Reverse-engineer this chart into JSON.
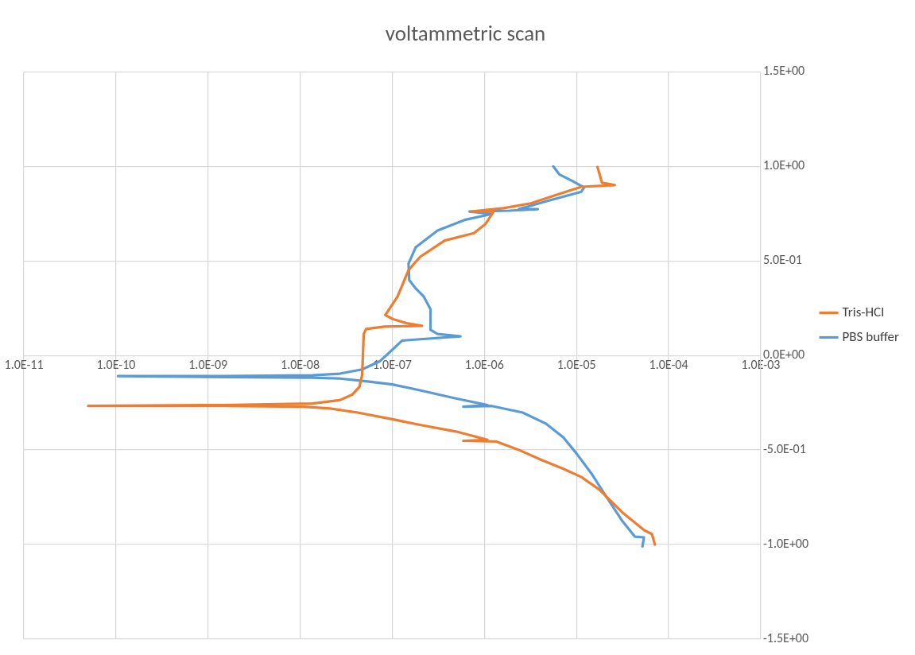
{
  "chart_data": {
    "type": "line",
    "title": "voltammetric scan",
    "log": "x",
    "grid": true,
    "legend": "right",
    "marker": "none",
    "line_style": "solid",
    "xlim": [
      1e-11,
      0.001
    ],
    "xticks": [
      {
        "value": 1e-11,
        "label": "1.0E-11"
      },
      {
        "value": 1e-10,
        "label": "1.0E-10"
      },
      {
        "value": 1e-09,
        "label": "1.0E-09"
      },
      {
        "value": 1e-08,
        "label": "1.0E-08"
      },
      {
        "value": 1e-07,
        "label": "1.0E-07"
      },
      {
        "value": 1e-06,
        "label": "1.0E-06"
      },
      {
        "value": 1e-05,
        "label": "1.0E-05"
      },
      {
        "value": 0.0001,
        "label": "1.0E-04"
      },
      {
        "value": 0.001,
        "label": "1.0E-03"
      }
    ],
    "ylim": [
      -1.5,
      1.5
    ],
    "yticks": [
      {
        "value": -1.5,
        "label": "-1.5E+00"
      },
      {
        "value": -1,
        "label": "-1.0E+00"
      },
      {
        "value": -0.5,
        "label": "-5.0E-01"
      },
      {
        "value": 0,
        "label": "0.0E+00"
      },
      {
        "value": 0.5,
        "label": "5.0E-01"
      },
      {
        "value": 1,
        "label": "1.0E+00"
      },
      {
        "value": 1.5,
        "label": "1.5E+00"
      }
    ],
    "series": [
      {
        "name": "Tris-HCl",
        "color": "#ed7d31",
        "x": [
          7.1e-05,
          6.6e-05,
          5.4e-05,
          3.1e-05,
          1.77e-05,
          1.13e-05,
          7.2e-06,
          4.1e-06,
          2.36e-06,
          1.35e-06,
          5.9e-07,
          1.08e-06,
          4.9e-07,
          2e-07,
          1e-07,
          4.2e-08,
          2.1e-08,
          1.09e-08,
          1.45e-09,
          5e-11,
          1.45e-09,
          1.36e-08,
          2.7e-08,
          3.7e-08,
          4.4e-08,
          4.7e-08,
          4.8e-08,
          4.9e-08,
          5.2e-08,
          8.2e-08,
          2.1e-07,
          1.43e-07,
          1.02e-07,
          8.4e-08,
          1.14e-07,
          1.5e-07,
          2e-07,
          3.7e-07,
          7.7e-07,
          1.03e-06,
          1.26e-06,
          7.2e-07,
          1.61e-06,
          3.2e-06,
          6.8e-06,
          1.13e-05,
          2.6e-05,
          1.89e-05,
          1.69e-05
        ],
        "values": [
          -1.0,
          -0.945,
          -0.923,
          -0.827,
          -0.709,
          -0.643,
          -0.599,
          -0.551,
          -0.499,
          -0.455,
          -0.451,
          -0.446,
          -0.402,
          -0.367,
          -0.337,
          -0.302,
          -0.28,
          -0.271,
          -0.267,
          -0.267,
          -0.262,
          -0.254,
          -0.236,
          -0.206,
          -0.166,
          -0.105,
          0,
          0.114,
          0.14,
          0.153,
          0.157,
          0.171,
          0.192,
          0.214,
          0.311,
          0.451,
          0.521,
          0.608,
          0.647,
          0.696,
          0.761,
          0.761,
          0.779,
          0.805,
          0.857,
          0.892,
          0.901,
          0.914,
          0.997
        ]
      },
      {
        "name": "PBS buffer",
        "color": "#5b9bd5",
        "x": [
          5.2e-05,
          5.4e-05,
          4.3e-05,
          3.1e-05,
          2.2e-05,
          1.48e-05,
          1.01e-05,
          7.2e-06,
          4.6e-06,
          2.6e-06,
          1.2e-06,
          5.9e-07,
          1.08e-06,
          4.9e-07,
          2e-07,
          1e-07,
          5.2e-08,
          2.7e-08,
          1.36e-08,
          1.45e-09,
          1.05e-10,
          1.45e-09,
          1.36e-08,
          2.7e-08,
          4.7e-08,
          7.3e-08,
          9.8e-08,
          1.28e-07,
          5.5e-07,
          3.1e-07,
          2.6e-07,
          2.6e-07,
          2.2e-07,
          1.8e-07,
          1.53e-07,
          1.5e-07,
          1.8e-07,
          3.1e-07,
          6.1e-07,
          1.2e-06,
          6.9e-07,
          1.88e-06,
          3.8e-06,
          2.36e-06,
          4.6e-06,
          1.13e-05,
          1.21e-05,
          9e-06,
          6.5e-06,
          5.6e-06
        ],
        "values": [
          -1.01,
          -0.962,
          -0.958,
          -0.871,
          -0.761,
          -0.63,
          -0.521,
          -0.433,
          -0.359,
          -0.302,
          -0.267,
          -0.271,
          -0.262,
          -0.227,
          -0.184,
          -0.153,
          -0.136,
          -0.122,
          -0.118,
          -0.114,
          -0.109,
          -0.109,
          -0.105,
          -0.096,
          -0.074,
          -0.031,
          0.026,
          0.079,
          0.101,
          0.114,
          0.136,
          0.245,
          0.311,
          0.354,
          0.398,
          0.486,
          0.573,
          0.661,
          0.717,
          0.748,
          0.761,
          0.766,
          0.774,
          0.774,
          0.814,
          0.866,
          0.888,
          0.923,
          0.958,
          1.0
        ]
      }
    ]
  }
}
